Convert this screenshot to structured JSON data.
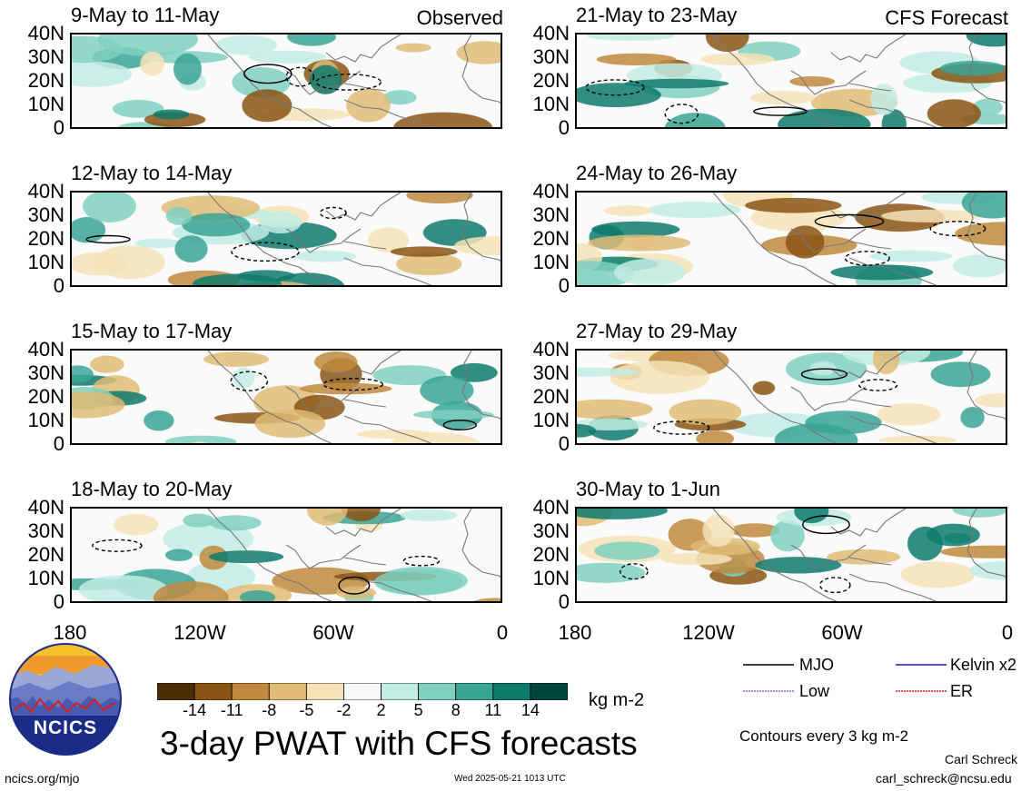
{
  "panels": {
    "observed_tag": "Observed",
    "forecast_tag": "CFS Forecast",
    "left": [
      {
        "title": "9-May to 11-May"
      },
      {
        "title": "12-May to 14-May"
      },
      {
        "title": "15-May to 17-May"
      },
      {
        "title": "18-May to 20-May"
      }
    ],
    "right": [
      {
        "title": "21-May to 23-May"
      },
      {
        "title": "24-May to 26-May"
      },
      {
        "title": "27-May to 29-May"
      },
      {
        "title": "30-May to 1-Jun"
      }
    ],
    "lat_labels": [
      "40N",
      "30N",
      "20N",
      "10N",
      "0"
    ],
    "lon_labels": [
      "180",
      "120W",
      "60W",
      "0"
    ]
  },
  "colorbar": {
    "labels": [
      "-14",
      "-11",
      "-8",
      "-5",
      "-2",
      "2",
      "5",
      "8",
      "11",
      "14"
    ],
    "colors": [
      "#4a2d06",
      "#8a5414",
      "#c08a3e",
      "#dfbb76",
      "#f4e3b7",
      "#f8f8f8",
      "#c2ece3",
      "#7fd0bf",
      "#3aa595",
      "#0e7a6c",
      "#01463d"
    ],
    "units": "kg m-2"
  },
  "legend": {
    "mjo": "MJO",
    "kelvin": "Kelvin x2",
    "low": "Low",
    "er": "ER",
    "contours_note": "Contours every 3 kg m-2",
    "colors": {
      "mjo": "#000000",
      "kelvin": "#1a1acc",
      "low": "#a05fd6",
      "er": "#d42020"
    }
  },
  "logo": {
    "text": "NCICS"
  },
  "main_title": "3-day PWAT with CFS forecasts",
  "footer": {
    "url": "ncics.org/mjo",
    "timestamp": "Wed 2025-05-21 1013 UTC",
    "author": "Carl Schreck",
    "email": "carl_schreck@ncsu.edu"
  }
}
